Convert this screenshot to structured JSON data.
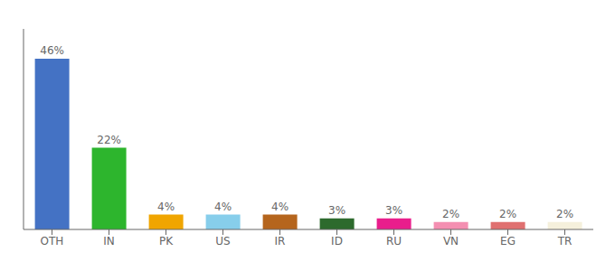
{
  "chart_data": {
    "type": "bar",
    "categories": [
      "OTH",
      "IN",
      "PK",
      "US",
      "IR",
      "ID",
      "RU",
      "VN",
      "EG",
      "TR"
    ],
    "values": [
      46,
      22,
      4,
      4,
      4,
      3,
      3,
      2,
      2,
      2
    ],
    "value_labels": [
      "46%",
      "22%",
      "4%",
      "4%",
      "4%",
      "3%",
      "3%",
      "2%",
      "2%",
      "2%"
    ],
    "colors": [
      "#4472c4",
      "#2db52d",
      "#f0a500",
      "#87ceeb",
      "#b5651d",
      "#2d6a2d",
      "#e91e8c",
      "#f48fb1",
      "#e07070",
      "#f5f0dc"
    ],
    "ylim": [
      0,
      54
    ],
    "data_labels": true,
    "tick_labels": "x",
    "grid": false
  }
}
